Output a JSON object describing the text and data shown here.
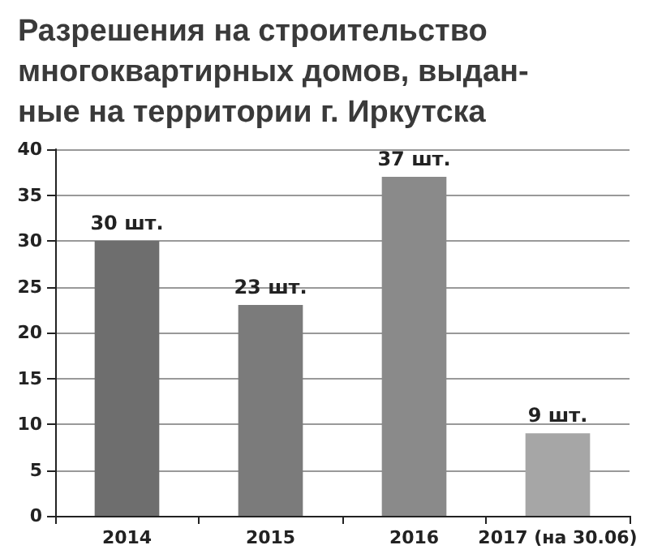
{
  "chart_data": {
    "type": "bar",
    "title": "Разрешения на строительство\nмногоквартирных домов, выдан-\nные на территории г. Иркутска",
    "categories": [
      "2014",
      "2015",
      "2016",
      "2017 (на 30.06)"
    ],
    "values": [
      30,
      23,
      37,
      9
    ],
    "colors": [
      "#6e6e6e",
      "#7b7b7b",
      "#8a8a8a",
      "#a6a6a6"
    ],
    "value_labels": [
      "30 шт.",
      "23 шт.",
      "37 шт.",
      "9 шт."
    ],
    "ylim": [
      0,
      40
    ],
    "yticks": [
      0,
      5,
      10,
      15,
      20,
      25,
      30,
      35,
      40
    ],
    "grid": "y"
  }
}
